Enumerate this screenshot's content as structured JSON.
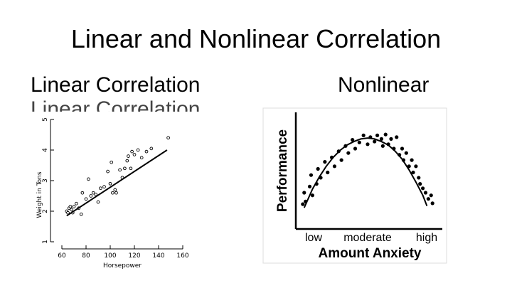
{
  "slide": {
    "title": "Linear and Nonlinear Correlation",
    "left_heading": "Linear Correlation",
    "right_heading": "Nonlinear"
  },
  "chart_data": [
    {
      "type": "scatter",
      "xlabel": "Horsepower",
      "ylabel": "Weight in Tons",
      "xlim": [
        60,
        160
      ],
      "ylim": [
        1,
        5
      ],
      "xticks": [
        60,
        80,
        100,
        120,
        140,
        160
      ],
      "yticks": [
        1,
        2,
        3,
        4,
        5
      ],
      "points": [
        [
          64,
          2.0
        ],
        [
          65,
          1.95
        ],
        [
          66,
          2.1
        ],
        [
          67,
          2.15
        ],
        [
          68,
          2.05
        ],
        [
          69,
          1.95
        ],
        [
          70,
          2.15
        ],
        [
          72,
          2.25
        ],
        [
          74,
          2.1
        ],
        [
          76,
          1.9
        ],
        [
          77,
          2.6
        ],
        [
          80,
          2.4
        ],
        [
          82,
          3.05
        ],
        [
          84,
          2.5
        ],
        [
          86,
          2.6
        ],
        [
          88,
          2.55
        ],
        [
          90,
          2.3
        ],
        [
          92,
          2.75
        ],
        [
          95,
          2.8
        ],
        [
          98,
          3.3
        ],
        [
          100,
          2.9
        ],
        [
          101,
          3.6
        ],
        [
          102,
          2.6
        ],
        [
          104,
          2.7
        ],
        [
          105,
          2.6
        ],
        [
          108,
          3.35
        ],
        [
          110,
          3.1
        ],
        [
          112,
          3.4
        ],
        [
          114,
          3.65
        ],
        [
          115,
          3.8
        ],
        [
          117,
          3.4
        ],
        [
          118,
          3.95
        ],
        [
          120,
          3.85
        ],
        [
          123,
          4.0
        ],
        [
          126,
          3.75
        ],
        [
          130,
          3.95
        ],
        [
          134,
          4.05
        ],
        [
          148,
          4.4
        ]
      ],
      "fit_line": [
        [
          64,
          1.85
        ],
        [
          147,
          4.0
        ]
      ],
      "grid": false
    },
    {
      "type": "scatter",
      "xlabel": "Amount Anxiety",
      "ylabel": "Performance",
      "xtick_labels": [
        "low",
        "moderate",
        "high"
      ],
      "xlim": [
        0,
        10
      ],
      "ylim": [
        0,
        10
      ],
      "points": [
        [
          0.3,
          1.2
        ],
        [
          0.4,
          2.5
        ],
        [
          0.5,
          1.5
        ],
        [
          0.8,
          3.2
        ],
        [
          0.9,
          4.5
        ],
        [
          1.0,
          2.2
        ],
        [
          1.3,
          3.5
        ],
        [
          1.4,
          5.2
        ],
        [
          1.6,
          4.2
        ],
        [
          1.9,
          6.0
        ],
        [
          2.1,
          4.8
        ],
        [
          2.4,
          6.5
        ],
        [
          2.6,
          5.5
        ],
        [
          2.9,
          7.2
        ],
        [
          3.1,
          6.2
        ],
        [
          3.4,
          7.8
        ],
        [
          3.6,
          7.0
        ],
        [
          3.9,
          8.5
        ],
        [
          4.1,
          7.5
        ],
        [
          4.4,
          8.2
        ],
        [
          4.7,
          9.0
        ],
        [
          5.0,
          8.0
        ],
        [
          5.2,
          8.8
        ],
        [
          5.5,
          8.3
        ],
        [
          5.7,
          9.0
        ],
        [
          6.0,
          8.6
        ],
        [
          6.1,
          7.8
        ],
        [
          6.3,
          9.1
        ],
        [
          6.5,
          8.0
        ],
        [
          6.7,
          8.6
        ],
        [
          6.9,
          7.5
        ],
        [
          7.1,
          8.8
        ],
        [
          7.3,
          6.8
        ],
        [
          7.5,
          7.5
        ],
        [
          7.6,
          6.2
        ],
        [
          7.8,
          7.0
        ],
        [
          8.0,
          5.5
        ],
        [
          8.2,
          6.2
        ],
        [
          8.3,
          4.8
        ],
        [
          8.5,
          5.5
        ],
        [
          8.7,
          4.2
        ],
        [
          8.8,
          3.5
        ],
        [
          9.0,
          3.0
        ],
        [
          9.2,
          2.5
        ],
        [
          9.4,
          1.8
        ],
        [
          9.6,
          2.2
        ],
        [
          9.7,
          1.3
        ]
      ],
      "curve": [
        [
          0.4,
          0.8
        ],
        [
          1.0,
          2.9
        ],
        [
          1.5,
          4.3
        ],
        [
          2.0,
          5.5
        ],
        [
          2.5,
          6.5
        ],
        [
          3.0,
          7.3
        ],
        [
          3.5,
          7.9
        ],
        [
          4.0,
          8.3
        ],
        [
          4.5,
          8.6
        ],
        [
          5.0,
          8.7
        ],
        [
          5.5,
          8.6
        ],
        [
          6.0,
          8.3
        ],
        [
          6.5,
          7.9
        ],
        [
          7.0,
          7.2
        ],
        [
          7.5,
          6.3
        ],
        [
          8.0,
          5.1
        ],
        [
          8.5,
          3.7
        ],
        [
          9.0,
          2.2
        ],
        [
          9.3,
          1.0
        ]
      ]
    }
  ]
}
